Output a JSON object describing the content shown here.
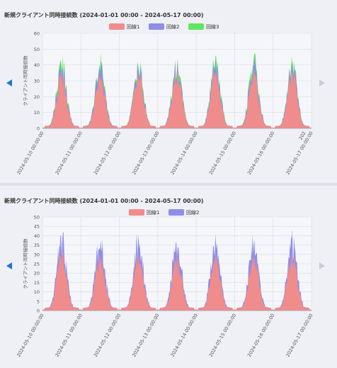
{
  "charts": [
    {
      "title": "新規クライアント同時接続数 (2024-01-01 00:00 - 2024-05-17 00:00)"
    },
    {
      "title": "新規クライアント同時接続数 (2024-01-01 00:00 - 2024-05-17 00:00)"
    }
  ],
  "chart_data": [
    {
      "type": "area",
      "stacked": true,
      "ylabel": "クライアント同時接続数",
      "xlabel": "",
      "ylim": [
        0,
        60
      ],
      "yticks": [
        0,
        10,
        20,
        30,
        40,
        50,
        60
      ],
      "grid": true,
      "legend_position": "top-center",
      "x_tick_labels": [
        "2024-05-10 00:00:00",
        "2024-05-11 00:00:00",
        "2024-05-12 00:00:00",
        "2024-05-13 00:00:00",
        "2024-05-14 00:00:00",
        "2024-05-15 00:00:00",
        "2024-05-16 00:00:00",
        "2024-05-17 00:00:00"
      ],
      "x_tick_overflow_label": "202",
      "series": [
        {
          "name": "回線1",
          "color": "#f08c8c",
          "daily_peak": [
            34,
            32,
            35,
            35,
            36,
            34,
            35
          ]
        },
        {
          "name": "回線2",
          "color": "#8e8ee8",
          "daily_peak": [
            7,
            10,
            6,
            7,
            7,
            9,
            7
          ]
        },
        {
          "name": "回線3",
          "color": "#5ee65e",
          "daily_peak": [
            6,
            5,
            4,
            4,
            5,
            6,
            4
          ]
        }
      ],
      "daily_total_peak": [
        47,
        47,
        44,
        46,
        48,
        47,
        47
      ]
    },
    {
      "type": "area",
      "stacked": true,
      "ylabel": "クライアント同時接続数",
      "xlabel": "",
      "ylim": [
        0,
        50
      ],
      "yticks": [
        0,
        5,
        10,
        15,
        20,
        25,
        30,
        35,
        40,
        45,
        50
      ],
      "grid": true,
      "legend_position": "top-center",
      "x_tick_labels": [
        "2024-05-10 00:00:00",
        "2024-05-11 00:00:00",
        "2024-05-12 00:00:00",
        "2024-05-13 00:00:00",
        "2024-05-14 00:00:00",
        "2024-05-15 00:00:00",
        "2024-05-16 00:00:00",
        "2024-05-17 00:00:00"
      ],
      "series": [
        {
          "name": "回線1",
          "color": "#f08c8c",
          "daily_peak": [
            30,
            29,
            30,
            28,
            30,
            30,
            30
          ]
        },
        {
          "name": "回線2",
          "color": "#8e8ee8",
          "daily_peak": [
            12,
            12,
            11,
            13,
            12,
            13,
            12
          ]
        }
      ],
      "daily_total_peak": [
        42,
        41,
        41,
        41,
        42,
        43,
        42
      ]
    }
  ]
}
